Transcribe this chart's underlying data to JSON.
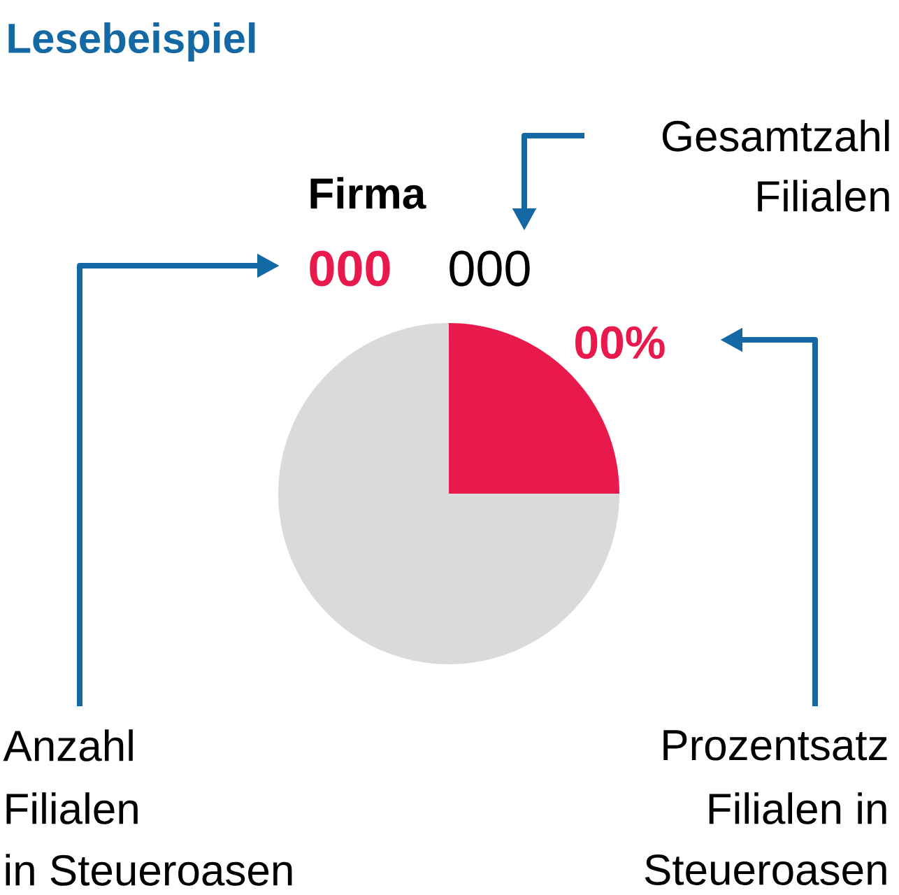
{
  "chart_data": {
    "type": "pie",
    "title": "Lesebeispiel",
    "subtitle": "Firma",
    "categories": [
      null,
      null
    ],
    "values": [
      25,
      75
    ],
    "colors": [
      "#e8194b",
      "#d9dadb"
    ],
    "annotations": [
      "000",
      "000",
      "00%",
      "Gesamtzahl",
      "Filialen",
      "Anzahl",
      "Filialen",
      "in Steueroasen",
      "Prozentsatz",
      "Filialen in",
      "Steueroasen"
    ]
  }
}
